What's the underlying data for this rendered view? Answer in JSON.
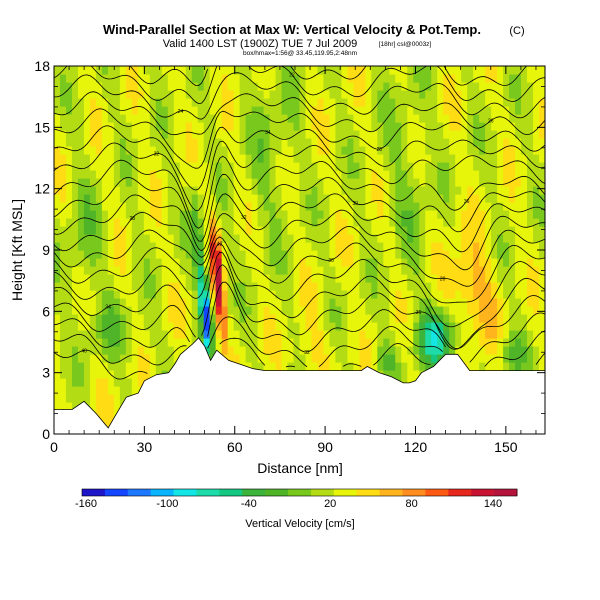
{
  "chart_data": {
    "type": "heatmap",
    "title": "Wind-Parallel Section at Max W: Vertical Velocity & Pot.Temp.",
    "title_mark": "(C)",
    "subtitle": "Valid 1400 LST (1900Z) TUE 7 Jul 2009",
    "subtitle_tag": "[18hr] csl@0003z]",
    "subtitle_small": "box/hmax=1:56@ 33.45,119.95,2:48nm",
    "xlabel": "Distance [nm]",
    "ylabel": "Height [Kft MSL]",
    "xlim": [
      0,
      163
    ],
    "ylim": [
      0,
      18
    ],
    "x_ticks": [
      0,
      30,
      60,
      90,
      120,
      150
    ],
    "y_ticks": [
      0,
      3,
      6,
      9,
      12,
      15,
      18
    ],
    "grid": false,
    "colorbar": {
      "label": "Vertical Velocity [cm/s]",
      "placement": "bottom",
      "tick_labels": [
        "-160",
        "-100",
        "-40",
        "20",
        "80",
        "140"
      ],
      "colors": [
        "#1e14c8",
        "#1446ff",
        "#1e78ff",
        "#0ab4ff",
        "#14e6e6",
        "#1edcaa",
        "#14c882",
        "#3cb43c",
        "#50b428",
        "#78c81e",
        "#b4dc14",
        "#e6f50a",
        "#ffdc14",
        "#ffb41e",
        "#ff8c1e",
        "#ff5a14",
        "#e6281e",
        "#c81432",
        "#b4143c"
      ]
    },
    "contour_field": "Potential Temperature",
    "contour_labels": [
      "40",
      "50",
      "32",
      "36",
      "34",
      "42",
      "30",
      "20",
      "28",
      "32",
      "30",
      "36",
      "32",
      "34",
      "28",
      "26",
      "24",
      "22"
    ],
    "terrain_profile": {
      "x": [
        0,
        6,
        10,
        14,
        18,
        20,
        24,
        28,
        30,
        34,
        38,
        40,
        42,
        46,
        48,
        50,
        52,
        54,
        58,
        62,
        66,
        70,
        74,
        78,
        82,
        86,
        90,
        94,
        98,
        102,
        104,
        108,
        112,
        116,
        118,
        120,
        122,
        126,
        130,
        134,
        138,
        140,
        144,
        148,
        152,
        156,
        160,
        163
      ],
      "y": [
        1.2,
        1.2,
        1.6,
        1.0,
        0.3,
        0.8,
        1.8,
        2.0,
        2.6,
        2.9,
        3.0,
        3.4,
        3.9,
        4.4,
        4.7,
        4.3,
        3.6,
        4.1,
        3.6,
        3.4,
        3.2,
        3.1,
        3.1,
        3.1,
        3.1,
        3.1,
        3.1,
        3.1,
        3.1,
        3.1,
        3.3,
        3.0,
        2.8,
        2.5,
        2.5,
        2.6,
        3.0,
        3.3,
        3.9,
        3.9,
        3.1,
        3.1,
        3.1,
        3.1,
        3.1,
        3.1,
        3.1,
        3.1
      ]
    },
    "features": [
      {
        "type": "updraft-core",
        "x": 54,
        "y": 7.5,
        "value": 140
      },
      {
        "type": "downdraft-core",
        "x": 50,
        "y": 5.8,
        "value": -130
      },
      {
        "type": "downdraft",
        "x": 127,
        "y": 4.6,
        "value": -70
      },
      {
        "type": "updraft",
        "x": 139,
        "y": 7.0,
        "value": 60
      }
    ]
  }
}
